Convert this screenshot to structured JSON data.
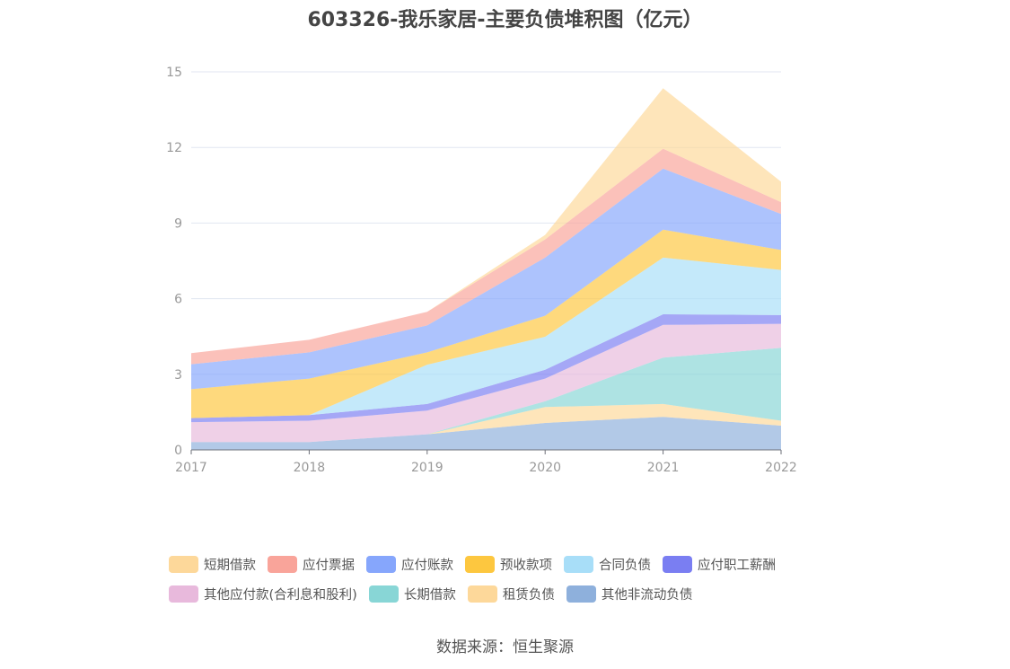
{
  "chart_data": {
    "type": "area",
    "stacked": true,
    "title": "603326-我乐家居-主要负债堆积图（亿元）",
    "categories": [
      "2017",
      "2018",
      "2019",
      "2020",
      "2021",
      "2022"
    ],
    "ylim": [
      0,
      15
    ],
    "yticks": [
      "0",
      "3",
      "6",
      "9",
      "12",
      "15"
    ],
    "grid": true,
    "legend_position": "bottom",
    "series": [
      {
        "name": "短期借款",
        "color": "#fdd89a",
        "values": [
          0,
          0,
          0,
          0.18,
          2.4,
          0.81
        ]
      },
      {
        "name": "应付票据",
        "color": "#f9a49a",
        "values": [
          0.44,
          0.5,
          0.54,
          0.72,
          0.79,
          0.47
        ]
      },
      {
        "name": "应付账款",
        "color": "#86a6fc",
        "values": [
          0.99,
          1.04,
          1.07,
          2.31,
          2.42,
          1.43
        ]
      },
      {
        "name": "预收款项",
        "color": "#fdc73f",
        "values": [
          1.15,
          1.45,
          0.49,
          0.83,
          1.11,
          0.79
        ]
      },
      {
        "name": "合同负债",
        "color": "#a8def8",
        "values": [
          0,
          0,
          1.56,
          1.31,
          2.25,
          1.79
        ]
      },
      {
        "name": "应付职工薪酬",
        "color": "#7a7ef2",
        "values": [
          0.16,
          0.22,
          0.26,
          0.35,
          0.42,
          0.35
        ]
      },
      {
        "name": "其他应付款(合利息和股利)",
        "color": "#e8b9dc",
        "values": [
          0.79,
          0.85,
          0.94,
          0.9,
          1.3,
          0.95
        ]
      },
      {
        "name": "长期借款",
        "color": "#88d6d6",
        "values": [
          0,
          0,
          0,
          0.23,
          1.84,
          2.89
        ]
      },
      {
        "name": "租赁负债",
        "color": "#fdd89a",
        "values": [
          0,
          0,
          0,
          0.63,
          0.51,
          0.2
        ]
      },
      {
        "name": "其他非流动负债",
        "color": "#8eb0dc",
        "values": [
          0.31,
          0.31,
          0.62,
          1.07,
          1.31,
          0.96
        ]
      }
    ]
  },
  "source": "数据来源：恒生聚源"
}
